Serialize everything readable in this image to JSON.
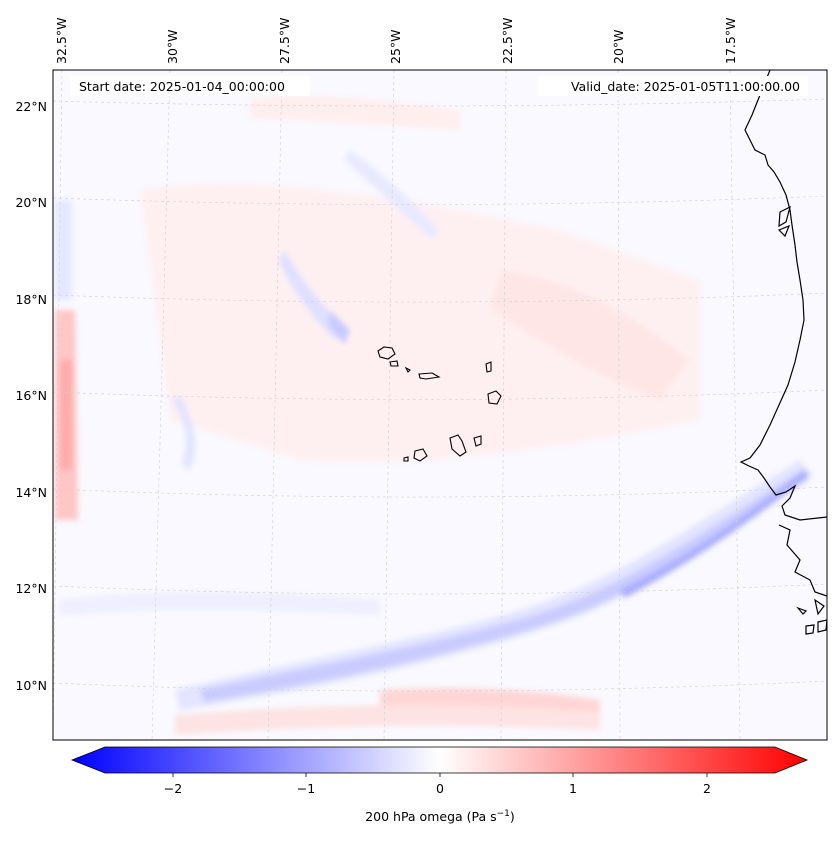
{
  "map": {
    "start_label": "Start date: 2025-01-04_00:00:00",
    "valid_label": "Valid_date: 2025-01-05T11:00:00.00",
    "lon_labels": [
      "32.5°W",
      "30°W",
      "27.5°W",
      "25°W",
      "22.5°W",
      "20°W",
      "17.5°W"
    ],
    "lat_labels": [
      "22°N",
      "20°N",
      "18°N",
      "16°N",
      "14°N",
      "12°N",
      "10°N"
    ]
  },
  "colorbar": {
    "ticks": [
      "−2",
      "−1",
      "0",
      "1",
      "2"
    ],
    "label_main": "200 hPa omega (Pa s",
    "label_sup": "−1",
    "label_end": ")",
    "min_color": "#0000ff",
    "mid_color": "#ffffff",
    "max_color": "#ff0000"
  }
}
